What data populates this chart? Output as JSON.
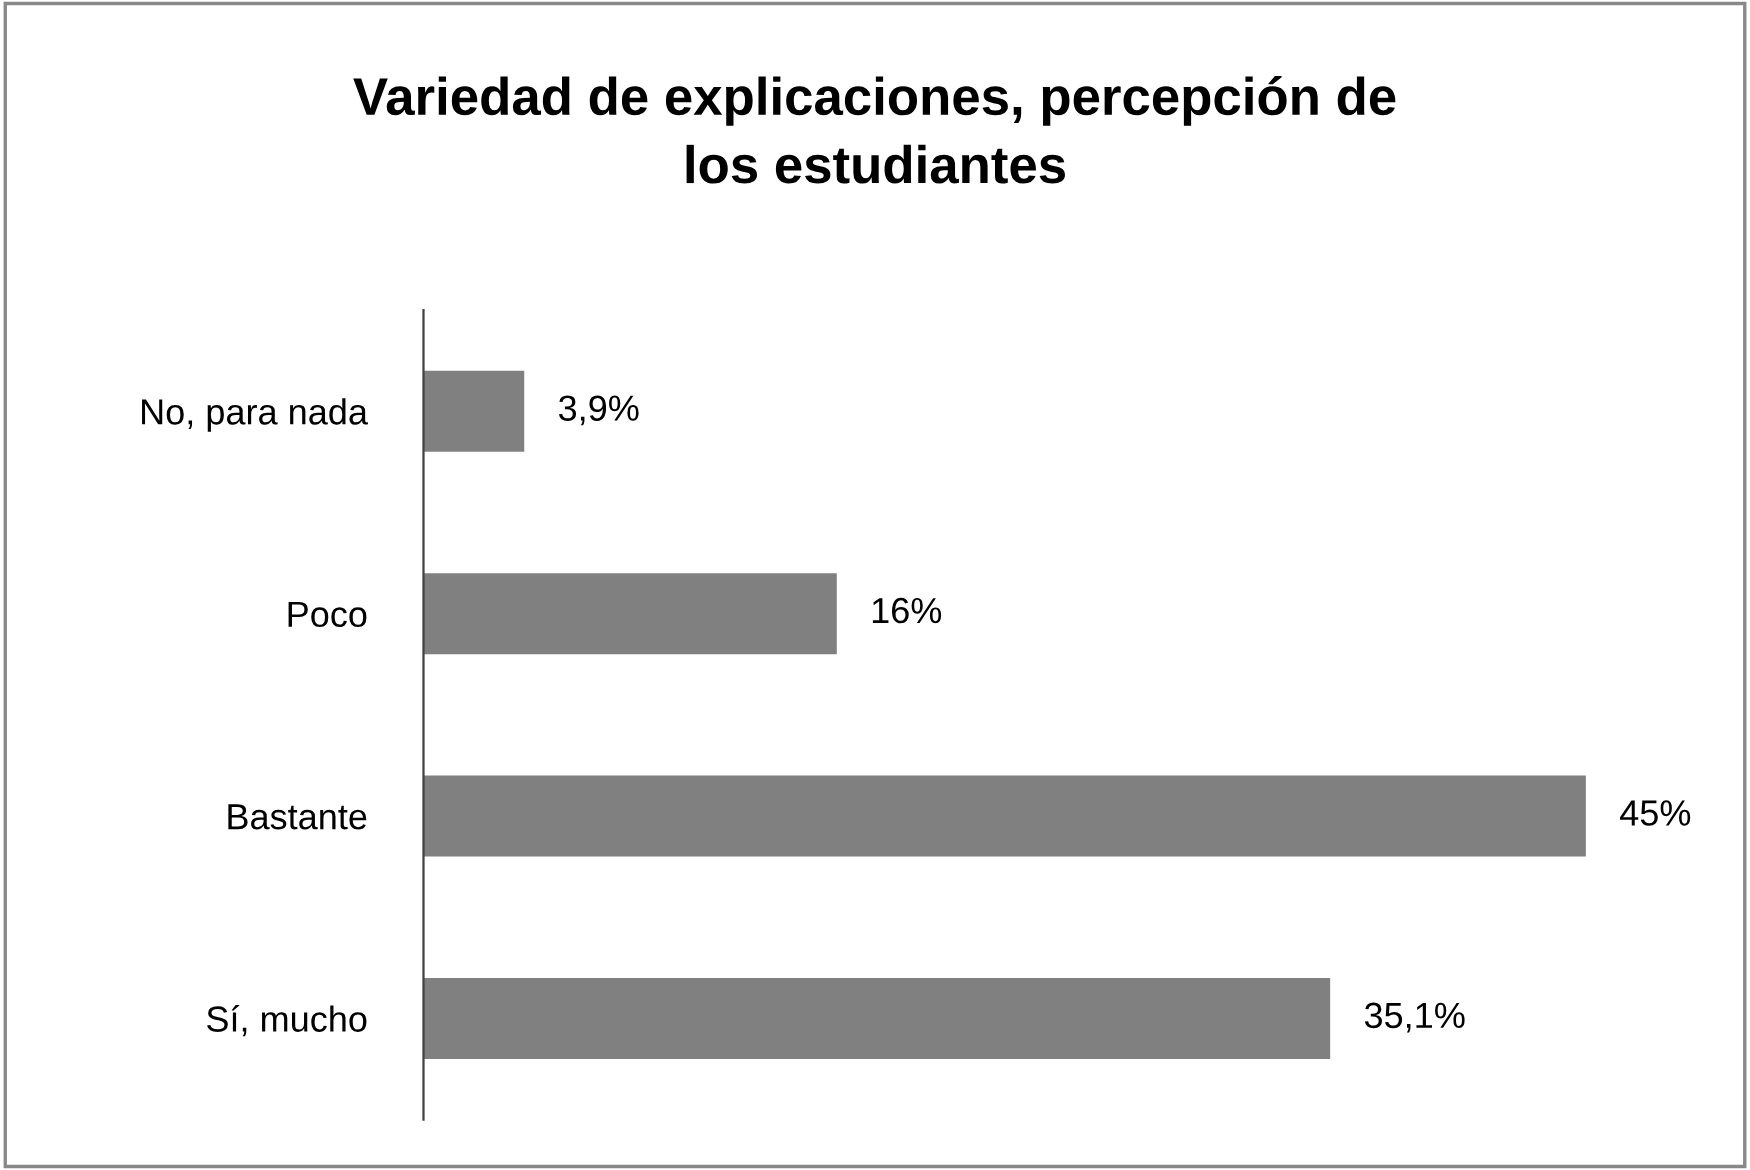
{
  "chart_data": {
    "type": "bar",
    "orientation": "horizontal",
    "title": "Variedad de explicaciones, percepción de\nlos estudiantes",
    "categories": [
      "No, para nada",
      "Poco",
      "Bastante",
      "Sí, mucho"
    ],
    "values": [
      3.9,
      16,
      45,
      35.1
    ],
    "value_labels": [
      "3,9%",
      "16%",
      "45%",
      "35,1%"
    ],
    "color": "#808080",
    "grid": false,
    "legend": false
  }
}
